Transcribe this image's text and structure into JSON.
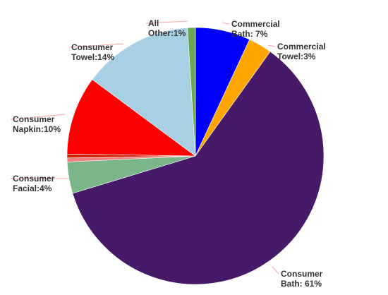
{
  "chart_data": {
    "type": "pie",
    "title": "",
    "start_angle_deg": 0,
    "direction": "clockwise",
    "slices": [
      {
        "name": "Commercial Bath",
        "value": 7,
        "label_lines": [
          "Commercial",
          "Bath: 7%"
        ],
        "color": "#0000ff"
      },
      {
        "name": "Commercial Towel",
        "value": 3,
        "label_lines": [
          "Commercial",
          "Towel:3%"
        ],
        "color": "#ffa500"
      },
      {
        "name": "Consumer Bath",
        "value": 61,
        "label_lines": [
          "Consumer",
          "Bath: 61%"
        ],
        "color": "#461a69"
      },
      {
        "name": "Consumer Facial",
        "value": 4,
        "label_lines": [
          "Consumer",
          "Facial:4%"
        ],
        "color": "#7ab68a"
      },
      {
        "name": "",
        "value": 0.5,
        "label_lines": [],
        "color": "#f08080"
      },
      {
        "name": "",
        "value": 0.5,
        "label_lines": [],
        "color": "#cc2200"
      },
      {
        "name": "Consumer Napkin",
        "value": 10,
        "label_lines": [
          "Consumer",
          "Napkin:10%"
        ],
        "color": "#ff0000"
      },
      {
        "name": "Consumer Towel",
        "value": 14,
        "label_lines": [
          "Consumer",
          "Towel:14%"
        ],
        "color": "#a8d0e4"
      },
      {
        "name": "All Other",
        "value": 1,
        "label_lines": [
          "All",
          "Other:1%"
        ],
        "color": "#6aa84f"
      }
    ]
  }
}
